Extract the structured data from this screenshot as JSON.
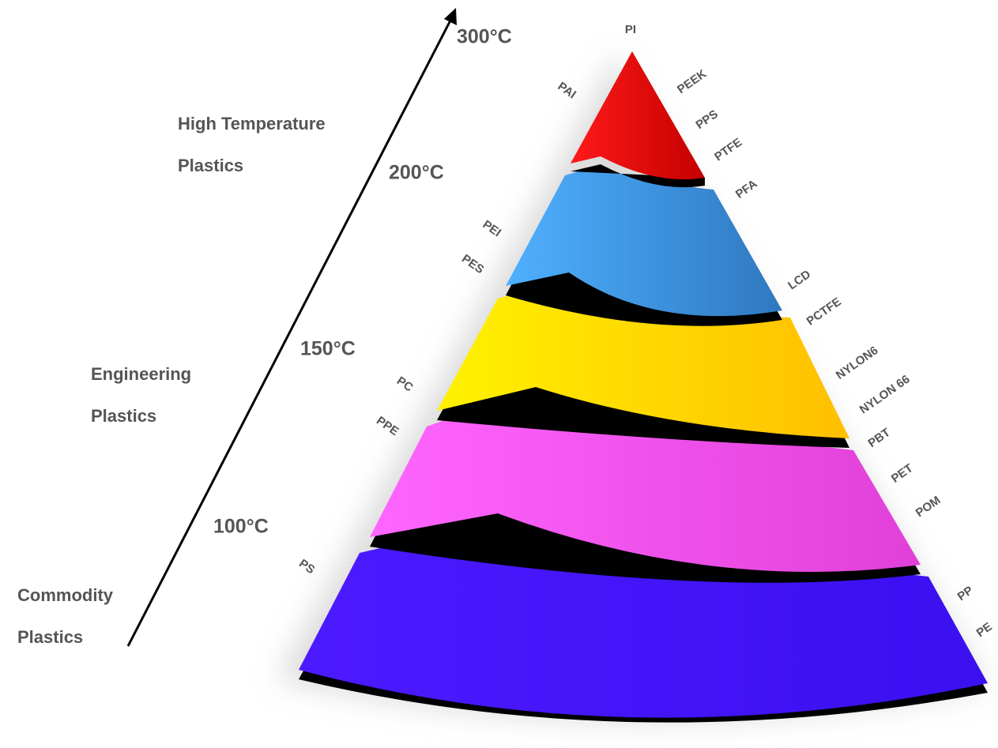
{
  "temperatures": [
    "300°C",
    "200°C",
    "150°C",
    "100°C"
  ],
  "categories": [
    {
      "lines": [
        "High Temperature",
        "Plastics"
      ]
    },
    {
      "lines": [
        "Engineering",
        "Plastics"
      ]
    },
    {
      "lines": [
        "Commodity",
        "Plastics"
      ]
    }
  ],
  "pyramid": {
    "layers": [
      {
        "labels": [
          "PI",
          "PAI",
          "PEEK",
          "PPS",
          "PTFE",
          "PFA"
        ]
      },
      {
        "labels": [
          "PEI",
          "PES",
          "LCD",
          "PCTFE"
        ]
      },
      {
        "labels": [
          "PC",
          "PPE",
          "NYLON6",
          "NYLON 66"
        ]
      },
      {
        "labels": [
          "PBT",
          "PET",
          "POM"
        ]
      },
      {
        "labels": [
          "PS",
          "PP",
          "PE"
        ]
      }
    ]
  }
}
